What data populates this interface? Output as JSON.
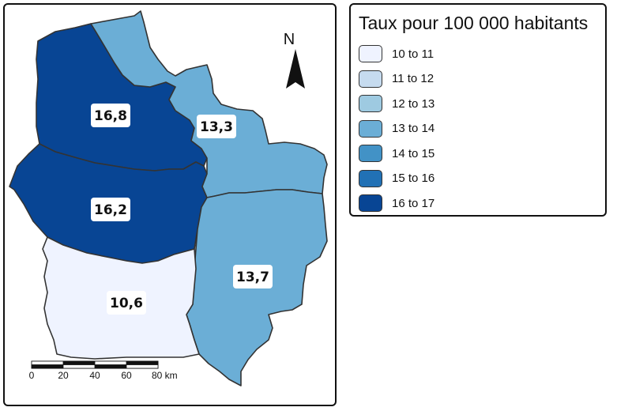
{
  "legend": {
    "title": "Taux pour 100 000 habitants",
    "classes": [
      {
        "label": "10 to 11",
        "color": "#eff3ff"
      },
      {
        "label": "11 to 12",
        "color": "#c6dbef"
      },
      {
        "label": "12 to 13",
        "color": "#9ecae1"
      },
      {
        "label": "13 to 14",
        "color": "#6baed6"
      },
      {
        "label": "14 to 15",
        "color": "#4292c6"
      },
      {
        "label": "15 to 16",
        "color": "#2171b5"
      },
      {
        "label": "16 to 17",
        "color": "#084594"
      }
    ]
  },
  "regions": [
    {
      "id": "nord-west",
      "value": "16,8",
      "color": "#084594"
    },
    {
      "id": "pas-de-calais",
      "value": "16,2",
      "color": "#084594"
    },
    {
      "id": "nord-east",
      "value": "13,3",
      "color": "#6baed6"
    },
    {
      "id": "aisne",
      "value": "13,7",
      "color": "#6baed6"
    },
    {
      "id": "oise",
      "value": "10,6",
      "color": "#eff3ff"
    }
  ],
  "north_arrow": {
    "label": "N"
  },
  "scale_bar": {
    "ticks": [
      "0",
      "20",
      "40",
      "60",
      "80 km"
    ]
  }
}
